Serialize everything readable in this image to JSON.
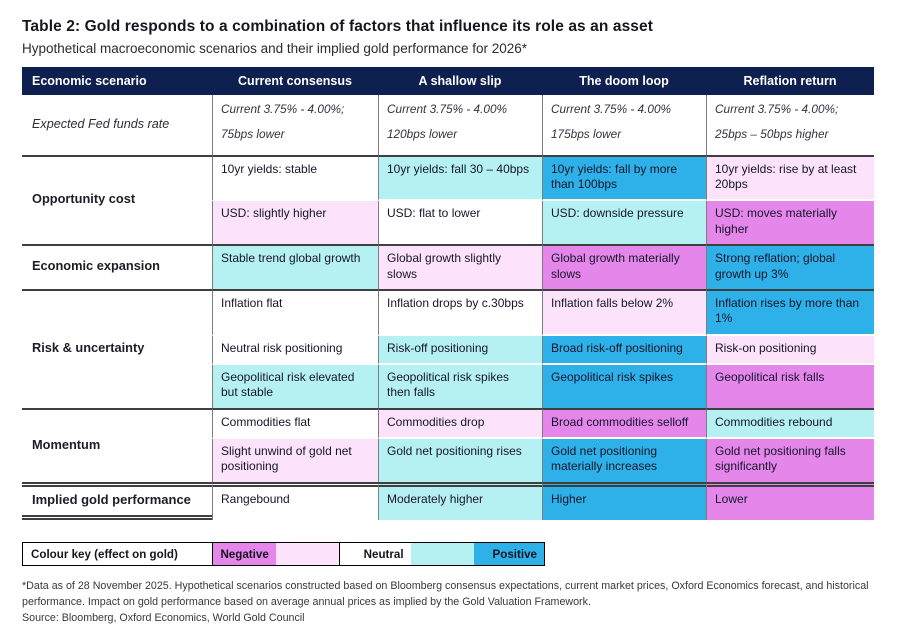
{
  "colors": {
    "header_bg": "#0e2050",
    "header_text": "#ffffff",
    "tones": {
      "neutral": "#ffffff",
      "positive_light": "#b5f1f3",
      "positive_strong": "#2eb1e8",
      "negative_light": "#fce2fb",
      "negative_strong": "#e486ea"
    }
  },
  "chart_data": {
    "type": "table",
    "title": "Table 2: Gold responds to a combination of factors that influence its role as an asset",
    "subtitle": "Hypothetical macroeconomic scenarios and their implied gold performance for 2026*",
    "columns": [
      "Economic scenario",
      "Current consensus",
      "A shallow slip",
      "The doom loop",
      "Reflation return"
    ],
    "row_groups": [
      {
        "id": "fed-funds-rate",
        "label": "Expected Fed funds rate",
        "label_italic": true,
        "subrows": [
          [
            {
              "text": "Current 3.75% - 4.00%;\n75bps lower",
              "tone": "neutral",
              "italic": true
            },
            {
              "text": "Current 3.75% - 4.00%\n120bps lower",
              "tone": "neutral",
              "italic": true
            },
            {
              "text": "Current 3.75% - 4.00%\n175bps lower",
              "tone": "neutral",
              "italic": true
            },
            {
              "text": "Current 3.75% - 4.00%;\n25bps – 50bps higher",
              "tone": "neutral",
              "italic": true
            }
          ]
        ]
      },
      {
        "id": "opportunity-cost",
        "label": "Opportunity cost",
        "label_italic": false,
        "subrows": [
          [
            {
              "text": "10yr yields: stable",
              "tone": "neutral"
            },
            {
              "text": "10yr yields: fall 30 – 40bps",
              "tone": "positive_light"
            },
            {
              "text": "10yr yields: fall by more than 100bps",
              "tone": "positive_strong"
            },
            {
              "text": "10yr yields: rise by at least 20bps",
              "tone": "negative_light"
            }
          ],
          [
            {
              "text": "USD: slightly higher",
              "tone": "negative_light"
            },
            {
              "text": "USD: flat to lower",
              "tone": "neutral"
            },
            {
              "text": "USD: downside pressure",
              "tone": "positive_light"
            },
            {
              "text": "USD: moves materially higher",
              "tone": "negative_strong"
            }
          ]
        ]
      },
      {
        "id": "economic-expansion",
        "label": "Economic expansion",
        "label_italic": false,
        "subrows": [
          [
            {
              "text": "Stable trend global growth",
              "tone": "positive_light"
            },
            {
              "text": "Global growth slightly slows",
              "tone": "negative_light"
            },
            {
              "text": "Global growth materially slows",
              "tone": "negative_strong"
            },
            {
              "text": "Strong reflation; global growth up 3%",
              "tone": "positive_strong"
            }
          ]
        ]
      },
      {
        "id": "risk-uncertainty",
        "label": "Risk & uncertainty",
        "label_italic": false,
        "subrows": [
          [
            {
              "text": "Inflation flat",
              "tone": "neutral"
            },
            {
              "text": "Inflation drops by c.30bps",
              "tone": "neutral"
            },
            {
              "text": "Inflation falls below 2%",
              "tone": "negative_light"
            },
            {
              "text": "Inflation rises by more than 1%",
              "tone": "positive_strong"
            }
          ],
          [
            {
              "text": "Neutral risk positioning",
              "tone": "neutral"
            },
            {
              "text": "Risk-off positioning",
              "tone": "positive_light"
            },
            {
              "text": "Broad risk-off positioning",
              "tone": "positive_strong"
            },
            {
              "text": "Risk-on positioning",
              "tone": "negative_light"
            }
          ],
          [
            {
              "text": "Geopolitical risk elevated but stable",
              "tone": "positive_light"
            },
            {
              "text": "Geopolitical risk spikes then falls",
              "tone": "positive_light"
            },
            {
              "text": "Geopolitical risk spikes",
              "tone": "positive_strong"
            },
            {
              "text": "Geopolitical risk falls",
              "tone": "negative_strong"
            }
          ]
        ]
      },
      {
        "id": "momentum",
        "label": "Momentum",
        "label_italic": false,
        "subrows": [
          [
            {
              "text": "Commodities flat",
              "tone": "neutral"
            },
            {
              "text": "Commodities drop",
              "tone": "negative_light"
            },
            {
              "text": "Broad commodities selloff",
              "tone": "negative_strong"
            },
            {
              "text": "Commodities rebound",
              "tone": "positive_light"
            }
          ],
          [
            {
              "text": "Slight unwind of gold net positioning",
              "tone": "negative_light"
            },
            {
              "text": "Gold net positioning rises",
              "tone": "positive_light"
            },
            {
              "text": "Gold net positioning materially increases",
              "tone": "positive_strong"
            },
            {
              "text": "Gold net positioning falls significantly",
              "tone": "negative_strong"
            }
          ]
        ]
      },
      {
        "id": "implied",
        "label": "Implied gold performance",
        "label_italic": false,
        "subrows": [
          [
            {
              "text": "Rangebound",
              "tone": "neutral"
            },
            {
              "text": "Moderately higher",
              "tone": "positive_light"
            },
            {
              "text": "Higher",
              "tone": "positive_strong"
            },
            {
              "text": "Lower",
              "tone": "negative_strong"
            }
          ]
        ]
      }
    ],
    "colour_key": {
      "label": "Colour key (effect on gold)",
      "segments": [
        {
          "label": "Negative",
          "tone": "negative_strong",
          "align": "center"
        },
        {
          "label": "",
          "tone": "negative_light",
          "align": "center"
        },
        {
          "label": "Neutral",
          "tone": "neutral",
          "align": "right",
          "divider_left": true
        },
        {
          "label": "",
          "tone": "positive_light",
          "align": "center"
        },
        {
          "label": "Positive",
          "tone": "positive_strong",
          "align": "right"
        }
      ]
    },
    "footnotes": [
      "*Data as of 28 November 2025. Hypothetical scenarios constructed based on Bloomberg consensus expectations, current market prices, Oxford Economics forecast, and historical performance. Impact on gold performance based on average annual prices as implied by the Gold Valuation Framework.",
      "Source: Bloomberg, Oxford Economics, World Gold Council"
    ]
  }
}
